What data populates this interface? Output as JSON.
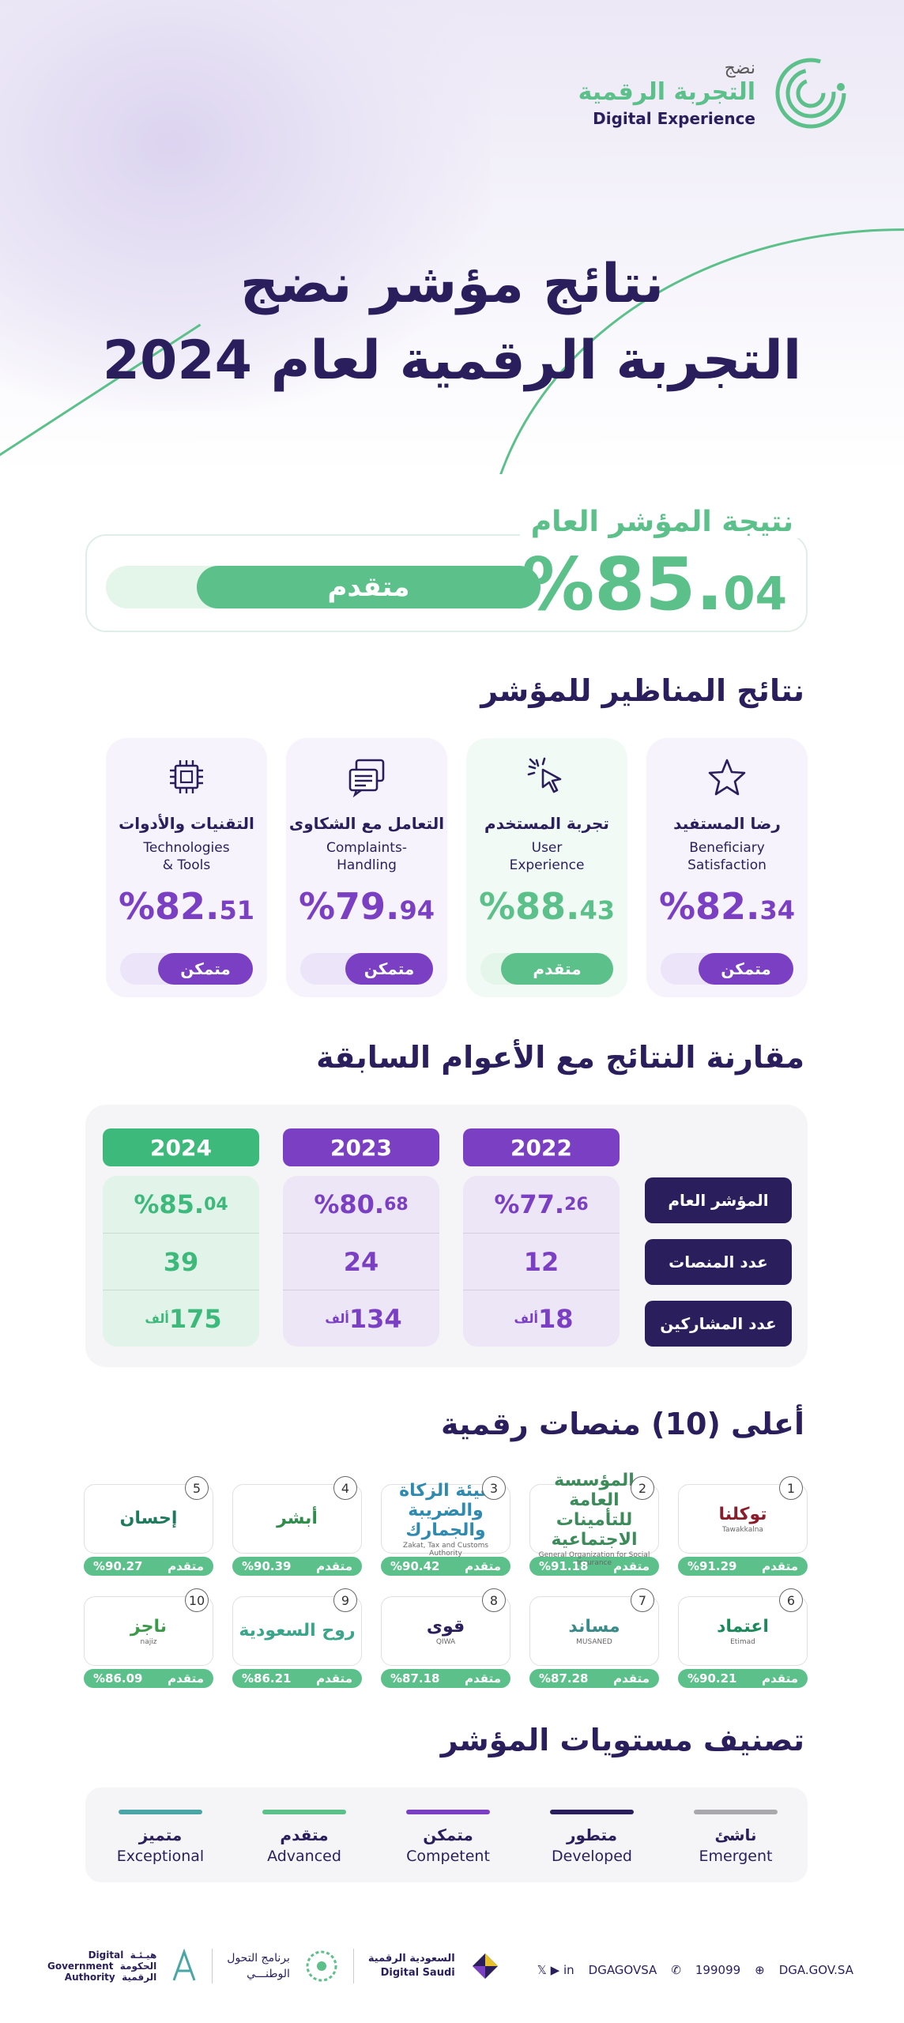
{
  "brand": {
    "line1": "نضج",
    "line2": "التجربة الرقمية",
    "en": "Digital Experience"
  },
  "title": {
    "line1": "نتائج مؤشر نضج",
    "line2": "التجربة الرقمية لعام 2024"
  },
  "overall": {
    "label": "نتيجة المؤشر العام",
    "value_int": "%85.",
    "value_dec": "04",
    "level": "متقدم",
    "fill_fraction": 0.8504
  },
  "perspectives": {
    "heading": "نتائج المناظير للمؤشر",
    "items": [
      {
        "icon": "star-icon",
        "ar": "رضا المستفيد",
        "en": "Beneficiary\nSatisfaction",
        "int": "%82.",
        "dec": "34",
        "level": "متمكن",
        "fraction": 0.8234,
        "color": "#7b3fc4",
        "track": "#ece4f8",
        "bg": "#f7f3fc"
      },
      {
        "icon": "cursor-click-icon",
        "ar": "تجربة المستخدم",
        "en": "User\nExperience",
        "int": "%88.",
        "dec": "43",
        "level": "متقدم",
        "fraction": 0.8843,
        "color": "#5cc08a",
        "track": "#e4f5ea",
        "bg": "#f1faf4"
      },
      {
        "icon": "chat-icon",
        "ar": "التعامل مع الشكاوى",
        "en": "Complaints-\nHandling",
        "int": "%79.",
        "dec": "94",
        "level": "متمكن",
        "fraction": 0.7994,
        "color": "#7b3fc4",
        "track": "#ece4f8",
        "bg": "#f7f3fc"
      },
      {
        "icon": "chip-icon",
        "ar": "التقنيات والأدوات",
        "en": "Technologies\n& Tools",
        "int": "%82.",
        "dec": "51",
        "level": "متمكن",
        "fraction": 0.8251,
        "color": "#7b3fc4",
        "track": "#ece4f8",
        "bg": "#f7f3fc"
      }
    ]
  },
  "comparison": {
    "heading": "مقارنة النتائج مع الأعوام السابقة",
    "row_labels": [
      "المؤشر العام",
      "عدد المنصات",
      "عدد المشاركين"
    ],
    "years": [
      {
        "year": "2022",
        "index_int": "%77.",
        "index_dec": "26",
        "platforms": "12",
        "participants": "18",
        "unit": "ألف",
        "head": "#7b3fc4",
        "bg": "#ece6f6",
        "fg": "#7b3fc4"
      },
      {
        "year": "2023",
        "index_int": "%80.",
        "index_dec": "68",
        "platforms": "24",
        "participants": "134",
        "unit": "ألف",
        "head": "#7b3fc4",
        "bg": "#ece6f6",
        "fg": "#7b3fc4"
      },
      {
        "year": "2024",
        "index_int": "%85.",
        "index_dec": "04",
        "platforms": "39",
        "participants": "175",
        "unit": "ألف",
        "head": "#3dba7b",
        "bg": "#e2f4ea",
        "fg": "#3dba7b"
      }
    ]
  },
  "top_platforms": {
    "heading": "أعلى (10) منصات رقمية",
    "items": [
      {
        "rank": "1",
        "name": "توكلنا",
        "sub": "Tawakkalna",
        "level": "متقدم",
        "score": "%91.29",
        "logo": "tawakkalna-logo"
      },
      {
        "rank": "2",
        "name": "المؤسسة العامة للتأمينات الاجتماعية",
        "sub": "General Organization for Social Insurance",
        "level": "متقدم",
        "score": "%91.18",
        "logo": "gosi-logo"
      },
      {
        "rank": "3",
        "name": "هيئة الزكاة والضريبة والجمارك",
        "sub": "Zakat, Tax and Customs Authority",
        "level": "متقدم",
        "score": "%90.42",
        "logo": "zatca-logo"
      },
      {
        "rank": "4",
        "name": "أبشر",
        "sub": "",
        "level": "متقدم",
        "score": "%90.39",
        "logo": "absher-logo"
      },
      {
        "rank": "5",
        "name": "إحسان",
        "sub": "",
        "level": "متقدم",
        "score": "%90.27",
        "logo": "ehsan-logo"
      },
      {
        "rank": "6",
        "name": "اعتماد",
        "sub": "Etimad",
        "level": "متقدم",
        "score": "%90.21",
        "logo": "etimad-logo"
      },
      {
        "rank": "7",
        "name": "مساند",
        "sub": "MUSANED",
        "level": "متقدم",
        "score": "%87.28",
        "logo": "musaned-logo"
      },
      {
        "rank": "8",
        "name": "قوى",
        "sub": "QIWA",
        "level": "متقدم",
        "score": "%87.18",
        "logo": "qiwa-logo"
      },
      {
        "rank": "9",
        "name": "روح السعودية",
        "sub": "",
        "level": "متقدم",
        "score": "%86.21",
        "logo": "visit-saudi-logo"
      },
      {
        "rank": "10",
        "name": "ناجز",
        "sub": "najiz",
        "level": "متقدم",
        "score": "%86.09",
        "logo": "najiz-logo"
      }
    ]
  },
  "levels": {
    "heading": "تصنيف مستويات المؤشر",
    "items": [
      {
        "ar": "ناشئ",
        "en": "Emergent",
        "color": "#a9a9ad"
      },
      {
        "ar": "متطور",
        "en": "Developed",
        "color": "#2a1f5c"
      },
      {
        "ar": "متمكن",
        "en": "Competent",
        "color": "#7b3fc4"
      },
      {
        "ar": "متقدم",
        "en": "Advanced",
        "color": "#5cc08a"
      },
      {
        "ar": "متميز",
        "en": "Exceptional",
        "color": "#4aa6a6"
      }
    ]
  },
  "footer": {
    "social": "DGAGOVSA",
    "phone": "199099",
    "web": "DGA.GOV.SA",
    "digital_saudi_ar": "السعودية الرقمية",
    "digital_saudi_en": "Digital Saudi",
    "ntp_ar1": "برنامج التحول",
    "ntp_ar2": "الوطنـــي",
    "dga_ar1": "هيـئـة",
    "dga_ar2": "الحكومة",
    "dga_ar3": "الرقمية",
    "dga_en1": "Digital",
    "dga_en2": "Government",
    "dga_en3": "Authority"
  }
}
